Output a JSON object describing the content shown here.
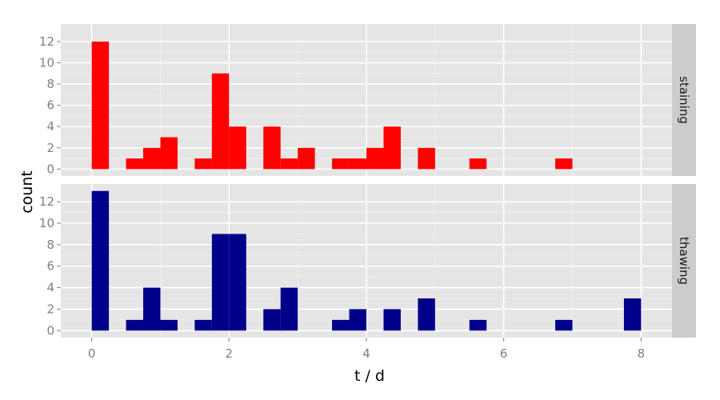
{
  "chart_data": {
    "type": "bar",
    "xlabel": "t / d",
    "ylabel": "count",
    "xlim": [
      -0.45,
      8.45
    ],
    "ylim": [
      -0.65,
      13.65
    ],
    "x_ticks": [
      0,
      2,
      4,
      6,
      8
    ],
    "y_ticks": [
      0,
      2,
      4,
      6,
      8,
      10,
      12
    ],
    "bin_width": 0.25,
    "grid": true,
    "panels": [
      {
        "label": "staining",
        "color": "#ff0000",
        "bins": [
          {
            "x": 0.0,
            "count": 12
          },
          {
            "x": 0.5,
            "count": 1
          },
          {
            "x": 0.75,
            "count": 2
          },
          {
            "x": 1.0,
            "count": 3
          },
          {
            "x": 1.5,
            "count": 1
          },
          {
            "x": 1.75,
            "count": 9
          },
          {
            "x": 2.0,
            "count": 4
          },
          {
            "x": 2.5,
            "count": 4
          },
          {
            "x": 2.75,
            "count": 1
          },
          {
            "x": 3.0,
            "count": 2
          },
          {
            "x": 3.5,
            "count": 1
          },
          {
            "x": 3.75,
            "count": 1
          },
          {
            "x": 4.0,
            "count": 2
          },
          {
            "x": 4.25,
            "count": 4
          },
          {
            "x": 4.75,
            "count": 2
          },
          {
            "x": 5.5,
            "count": 1
          },
          {
            "x": 6.75,
            "count": 1
          }
        ]
      },
      {
        "label": "thawing",
        "color": "#00008b",
        "bins": [
          {
            "x": 0.0,
            "count": 13
          },
          {
            "x": 0.5,
            "count": 1
          },
          {
            "x": 0.75,
            "count": 4
          },
          {
            "x": 1.0,
            "count": 1
          },
          {
            "x": 1.5,
            "count": 1
          },
          {
            "x": 1.75,
            "count": 9
          },
          {
            "x": 2.0,
            "count": 9
          },
          {
            "x": 2.5,
            "count": 2
          },
          {
            "x": 2.75,
            "count": 4
          },
          {
            "x": 3.5,
            "count": 1
          },
          {
            "x": 3.75,
            "count": 2
          },
          {
            "x": 4.25,
            "count": 2
          },
          {
            "x": 4.75,
            "count": 3
          },
          {
            "x": 5.5,
            "count": 1
          },
          {
            "x": 6.75,
            "count": 1
          },
          {
            "x": 7.75,
            "count": 3
          }
        ]
      }
    ]
  },
  "style": {
    "panel_background": "#e5e5e5",
    "strip_background": "#cccccc",
    "grid_major": "#ffffff",
    "grid_minor": "#f2f2f2"
  }
}
